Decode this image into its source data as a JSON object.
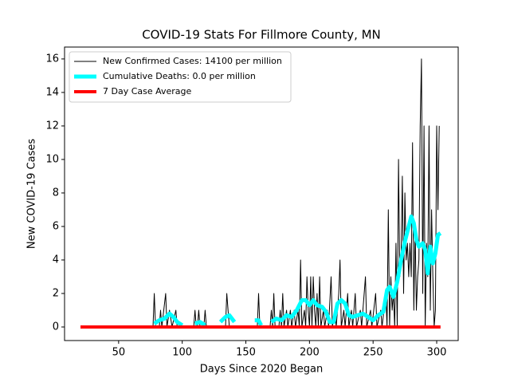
{
  "chart_data": {
    "type": "line",
    "title": "COVID-19 Stats For Fillmore County, MN",
    "x_label": "Days Since 2020 Began",
    "y_label": "New COVID-19 Cases",
    "xlim": [
      7.5,
      316.9
    ],
    "ylim": [
      -0.81,
      16.71
    ],
    "xticks": [
      50,
      100,
      150,
      200,
      250,
      300
    ],
    "yticks": [
      0,
      2,
      4,
      6,
      8,
      10,
      12,
      14,
      16
    ],
    "grid": false,
    "legend": "upper left",
    "series": [
      {
        "name": "New Confirmed Cases: 14100 per million",
        "color": "#000000",
        "width": 1,
        "x": [
          20,
          77,
          78,
          79,
          82,
          83,
          84,
          87,
          88,
          90,
          92,
          95,
          96,
          109,
          110,
          111,
          112,
          113,
          114,
          117,
          118,
          119,
          134,
          135,
          137,
          159,
          160,
          161,
          169,
          170,
          171,
          172,
          173,
          176,
          177,
          178,
          179,
          180,
          182,
          183,
          185,
          186,
          188,
          189,
          191,
          192,
          193,
          194,
          196,
          197,
          198,
          199,
          200,
          201,
          202,
          203,
          204,
          205,
          206,
          207,
          208,
          209,
          211,
          212,
          214,
          215,
          217,
          218,
          220,
          221,
          223,
          224,
          225,
          227,
          228,
          230,
          231,
          233,
          234,
          236,
          237,
          240,
          241,
          244,
          245,
          248,
          249,
          252,
          253,
          256,
          257,
          260,
          261,
          262,
          263,
          264,
          265,
          266,
          267,
          268,
          269,
          270,
          271,
          272,
          273,
          274,
          275,
          276,
          277,
          278,
          279,
          280,
          281,
          282,
          283,
          284,
          285,
          286,
          287,
          288,
          289,
          290,
          291,
          292,
          293,
          294,
          295,
          296,
          297,
          298,
          299,
          300,
          301,
          302
        ],
        "values": [
          0,
          0,
          2,
          0,
          0,
          1,
          0,
          2,
          0,
          1,
          0,
          1,
          0,
          0,
          1,
          0,
          0,
          1,
          0,
          0,
          1,
          0,
          0,
          2,
          0,
          0,
          2,
          0,
          0,
          1,
          0,
          2,
          0,
          0,
          1,
          0,
          2,
          0,
          1,
          0,
          1,
          0,
          1,
          0,
          1,
          0,
          4,
          0,
          1,
          0,
          3,
          1,
          0,
          3,
          0,
          3,
          1,
          0,
          2,
          0,
          3,
          0,
          1,
          0,
          1,
          0,
          3,
          0,
          1,
          0,
          2,
          4,
          0,
          1,
          0,
          2,
          0,
          1,
          0,
          2,
          0,
          1,
          0,
          3,
          0,
          1,
          0,
          2,
          0,
          1,
          0,
          2,
          0,
          7,
          0,
          3,
          1,
          2,
          0,
          5,
          0,
          10,
          3,
          4,
          9,
          2,
          8,
          4,
          5,
          3,
          5,
          3,
          11,
          1,
          6,
          1,
          3,
          4,
          12,
          16,
          2,
          12,
          0,
          5,
          3,
          12,
          1,
          7,
          3,
          0,
          1,
          12,
          7,
          12
        ]
      },
      {
        "name": "Cumulative Deaths: 0.0 per million",
        "color": "#00ffff",
        "width": 5,
        "x": [
          78,
          82,
          86,
          90,
          93,
          96,
          100,
          101,
          110,
          114,
          118,
          119,
          130,
          134,
          137,
          141,
          142,
          157,
          160,
          162,
          163,
          170,
          174,
          178,
          182,
          186,
          190,
          194,
          197,
          200,
          203,
          206,
          210,
          213,
          216,
          219,
          222,
          225,
          228,
          231,
          234,
          238,
          242,
          246,
          250,
          254,
          258,
          261,
          263,
          266,
          269,
          272,
          275,
          278,
          280,
          282,
          284,
          286,
          289,
          291,
          293,
          295,
          297,
          299,
          301,
          303
        ],
        "values": [
          0.2,
          0.4,
          0.5,
          0.8,
          0.6,
          0.3,
          0.1,
          null,
          0.2,
          0.3,
          0.1,
          null,
          0.3,
          0.6,
          0.7,
          0.3,
          null,
          0.4,
          0.4,
          0.1,
          null,
          0.3,
          0.5,
          0.4,
          0.7,
          0.6,
          1.0,
          1.6,
          1.6,
          1.3,
          1.6,
          1.3,
          1.2,
          0.9,
          0.3,
          0.3,
          1.4,
          1.6,
          1.4,
          0.7,
          0.6,
          0.7,
          0.8,
          0.6,
          0.4,
          0.7,
          0.9,
          2.2,
          2.4,
          1.8,
          2.7,
          4.0,
          5.1,
          6.0,
          6.6,
          6.2,
          5.2,
          4.8,
          5.0,
          4.6,
          3.2,
          4.8,
          3.8,
          4.4,
          5.5,
          5.6
        ]
      },
      {
        "name": "7 Day Case Average",
        "color": "#ff0000",
        "width": 4,
        "x": [
          20,
          303
        ],
        "values": [
          0,
          0
        ]
      }
    ]
  }
}
